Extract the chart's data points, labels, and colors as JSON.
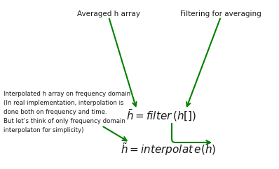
{
  "bg_color": "#ffffff",
  "green_color": "#008000",
  "dark_color": "#1a1a1a",
  "label_avg": "Averaged h array",
  "label_filter": "Filtering for averaging",
  "formula_filter": "$\\bar{h} = \\mathit{filter}\\,(h[])$",
  "formula_interp": "$\\tilde{h} = \\mathit{interpolat\\,e}(\\bar{h})$",
  "interp_text_line1": "Interpolated h array on frequency domain",
  "interp_text_line2": "(In real implementation, interpolation is",
  "interp_text_line3": "done both on frequency and time.",
  "interp_text_line4": "But let’s think of only frequency domain",
  "interp_text_line5": "interpolaton for simplicity)",
  "figsize": [
    3.98,
    2.42
  ],
  "dpi": 100
}
